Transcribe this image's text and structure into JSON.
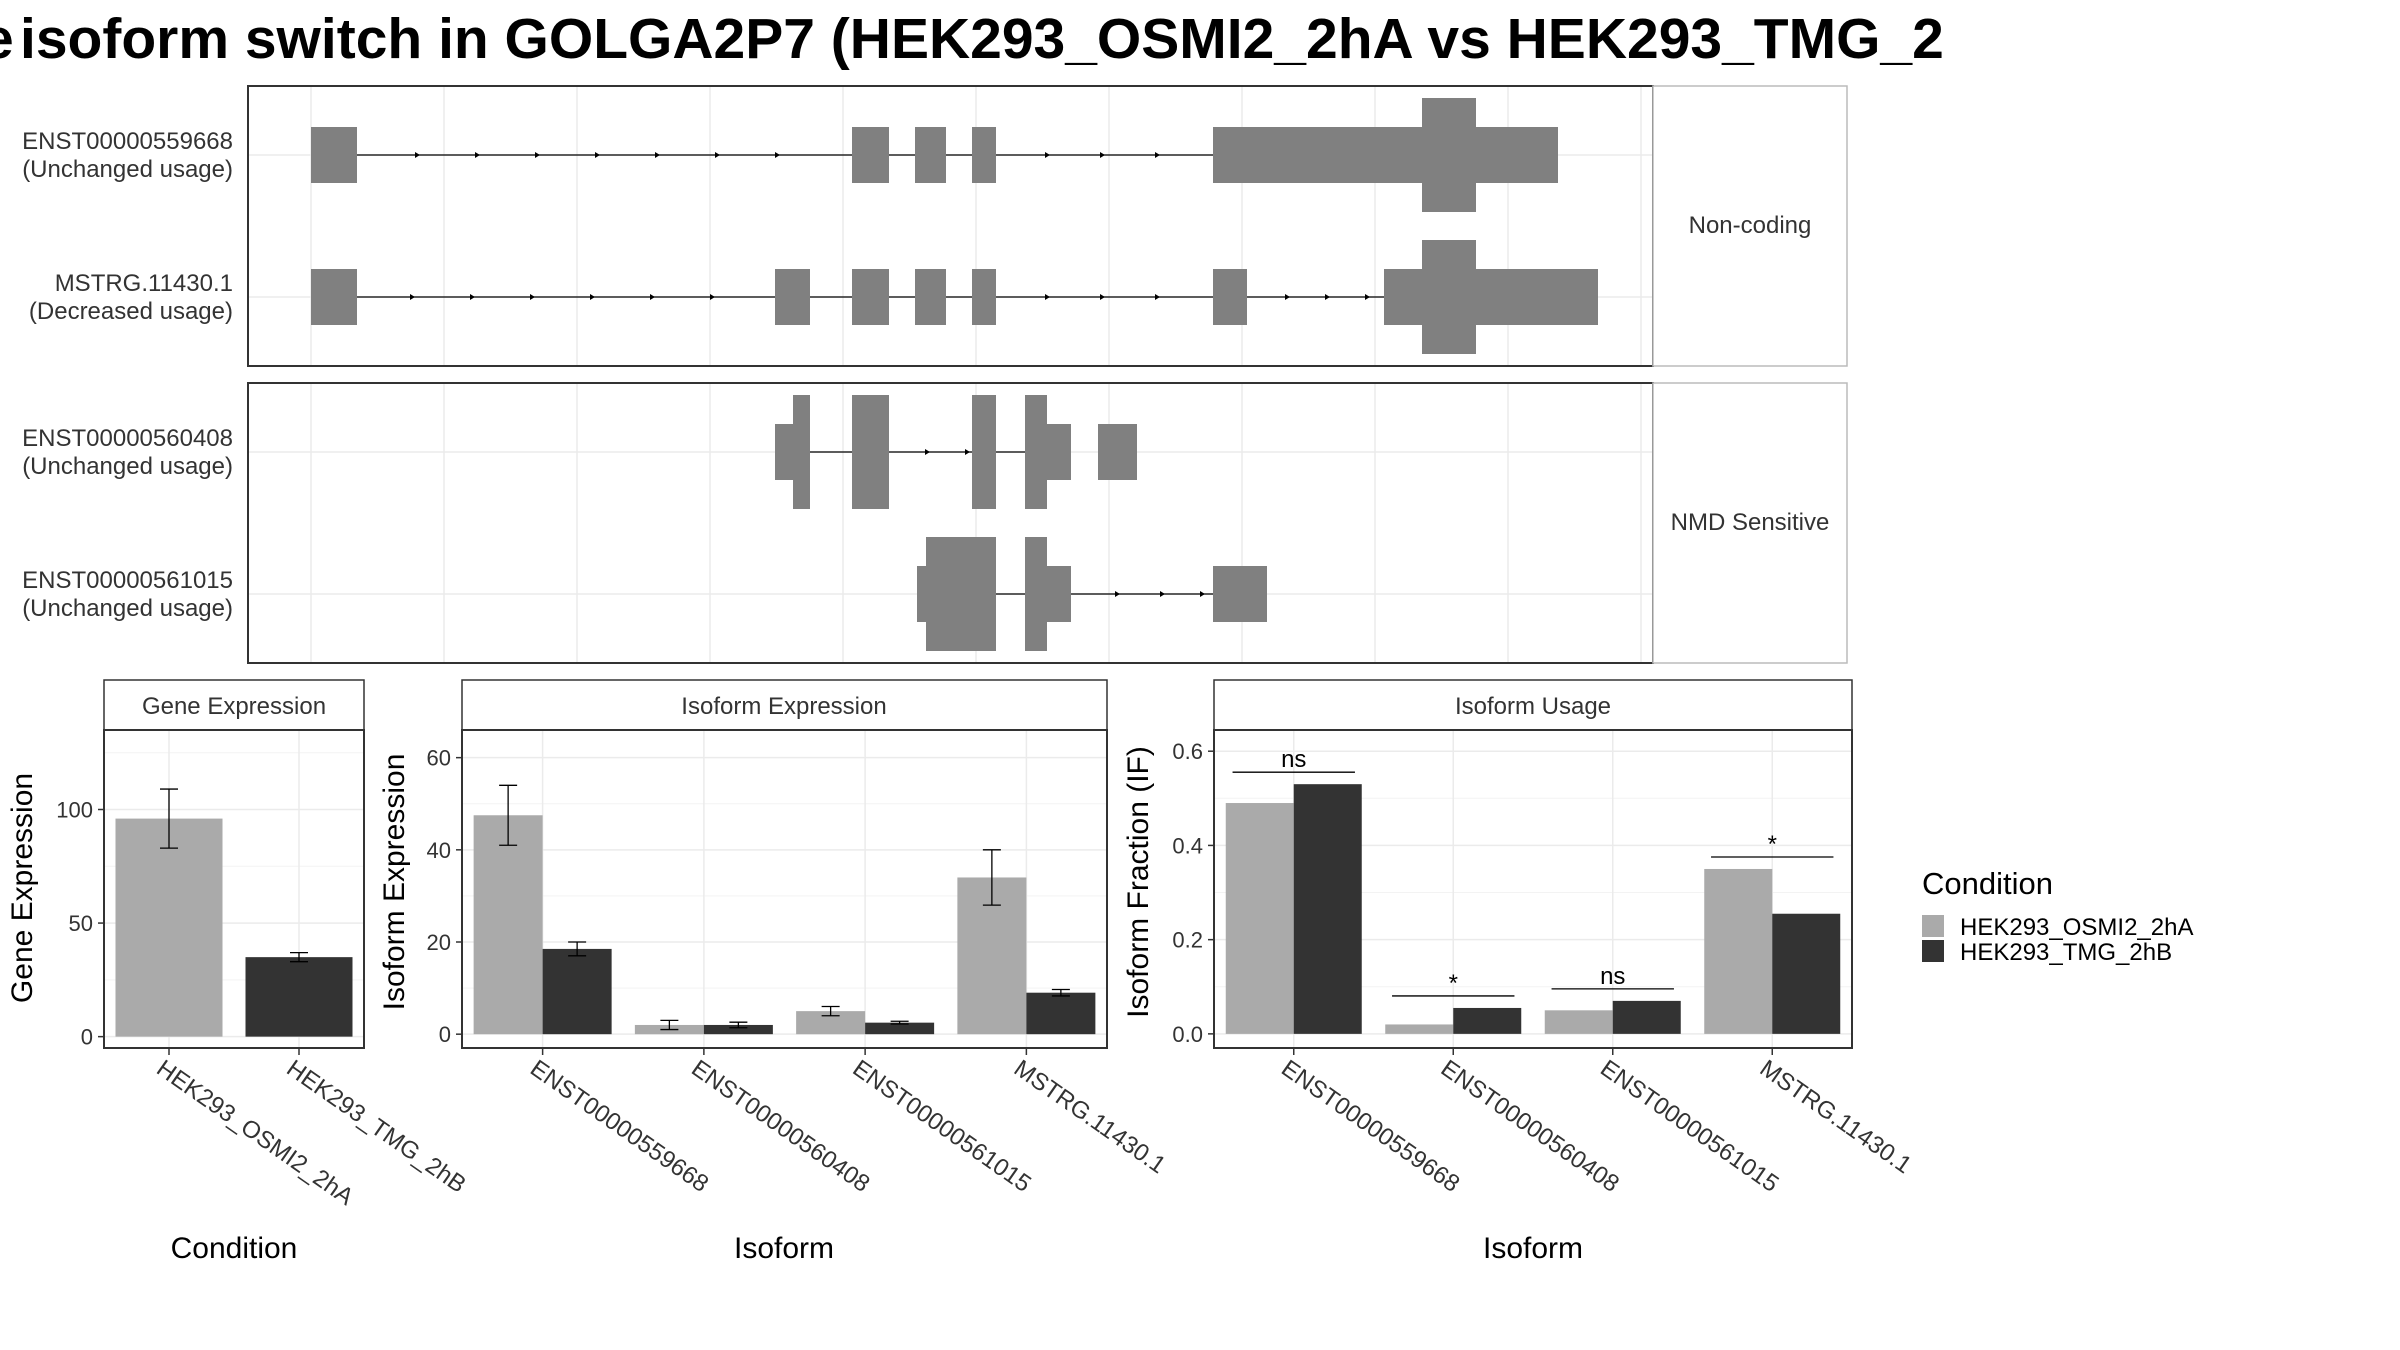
{
  "title": "isoform switch in GOLGA2P7 (HEK293_OSMI2_2hA vs HEK293_TMG_2",
  "title_prefix_glyph": "e",
  "transcript_structures": {
    "facets": [
      {
        "label": "Non-coding",
        "transcripts": [
          {
            "id": "ENST00000559668",
            "usage": "(Unchanged usage)"
          },
          {
            "id": "MSTRG.11430.1",
            "usage": "(Decreased usage)"
          }
        ]
      },
      {
        "label": "NMD Sensitive",
        "transcripts": [
          {
            "id": "ENST00000560408",
            "usage": "(Unchanged usage)"
          },
          {
            "id": "ENST00000561015",
            "usage": "(Unchanged usage)"
          }
        ]
      }
    ]
  },
  "colors": {
    "cond_a": "#AAAAAA",
    "cond_b": "#333333",
    "exon": "#808080",
    "strip_bg": "#FFFFFF",
    "grid": "#EBEBEB",
    "panel_border": "#333333"
  },
  "legend": {
    "title": "Condition",
    "items": [
      "HEK293_OSMI2_2hA",
      "HEK293_TMG_2hB"
    ]
  },
  "chart_data": [
    {
      "type": "bar",
      "title": "Gene Expression",
      "xlabel": "Condition",
      "ylabel": "Gene Expression",
      "categories": [
        "HEK293_OSMI2_2hA",
        "HEK293_TMG_2hB"
      ],
      "values": [
        96,
        35
      ],
      "errors": [
        [
          83,
          109
        ],
        [
          33,
          37
        ]
      ],
      "ylim": [
        -5,
        135
      ],
      "yticks": [
        0,
        50,
        100
      ],
      "grid": true
    },
    {
      "type": "bar",
      "title": "Isoform Expression",
      "xlabel": "Isoform",
      "ylabel": "Isoform Expression",
      "categories": [
        "ENST00000559668",
        "ENST00000560408",
        "ENST00000561015",
        "MSTRG.11430.1"
      ],
      "series": [
        {
          "name": "HEK293_OSMI2_2hA",
          "values": [
            47.5,
            2.0,
            5.0,
            34.0
          ],
          "errors": [
            [
              41,
              54
            ],
            [
              1,
              3
            ],
            [
              4,
              6
            ],
            [
              28,
              40
            ]
          ]
        },
        {
          "name": "HEK293_TMG_2hB",
          "values": [
            18.5,
            2.0,
            2.5,
            9.0
          ],
          "errors": [
            [
              17,
              20
            ],
            [
              1.4,
              2.6
            ],
            [
              2.2,
              2.8
            ],
            [
              8.3,
              9.7
            ]
          ]
        }
      ],
      "ylim": [
        -3,
        66
      ],
      "yticks": [
        0,
        20,
        40,
        60
      ],
      "grid": true
    },
    {
      "type": "bar",
      "title": "Isoform Usage",
      "xlabel": "Isoform",
      "ylabel": "Isoform Fraction (IF)",
      "categories": [
        "ENST00000559668",
        "ENST00000560408",
        "ENST00000561015",
        "MSTRG.11430.1"
      ],
      "series": [
        {
          "name": "HEK293_OSMI2_2hA",
          "values": [
            0.49,
            0.02,
            0.05,
            0.35
          ]
        },
        {
          "name": "HEK293_TMG_2hB",
          "values": [
            0.53,
            0.055,
            0.07,
            0.255
          ]
        }
      ],
      "significance": [
        "ns",
        "*",
        "ns",
        "*"
      ],
      "ylim": [
        -0.03,
        0.645
      ],
      "yticks": [
        "0.0",
        "0.2",
        "0.4",
        "0.6"
      ],
      "grid": true
    }
  ]
}
